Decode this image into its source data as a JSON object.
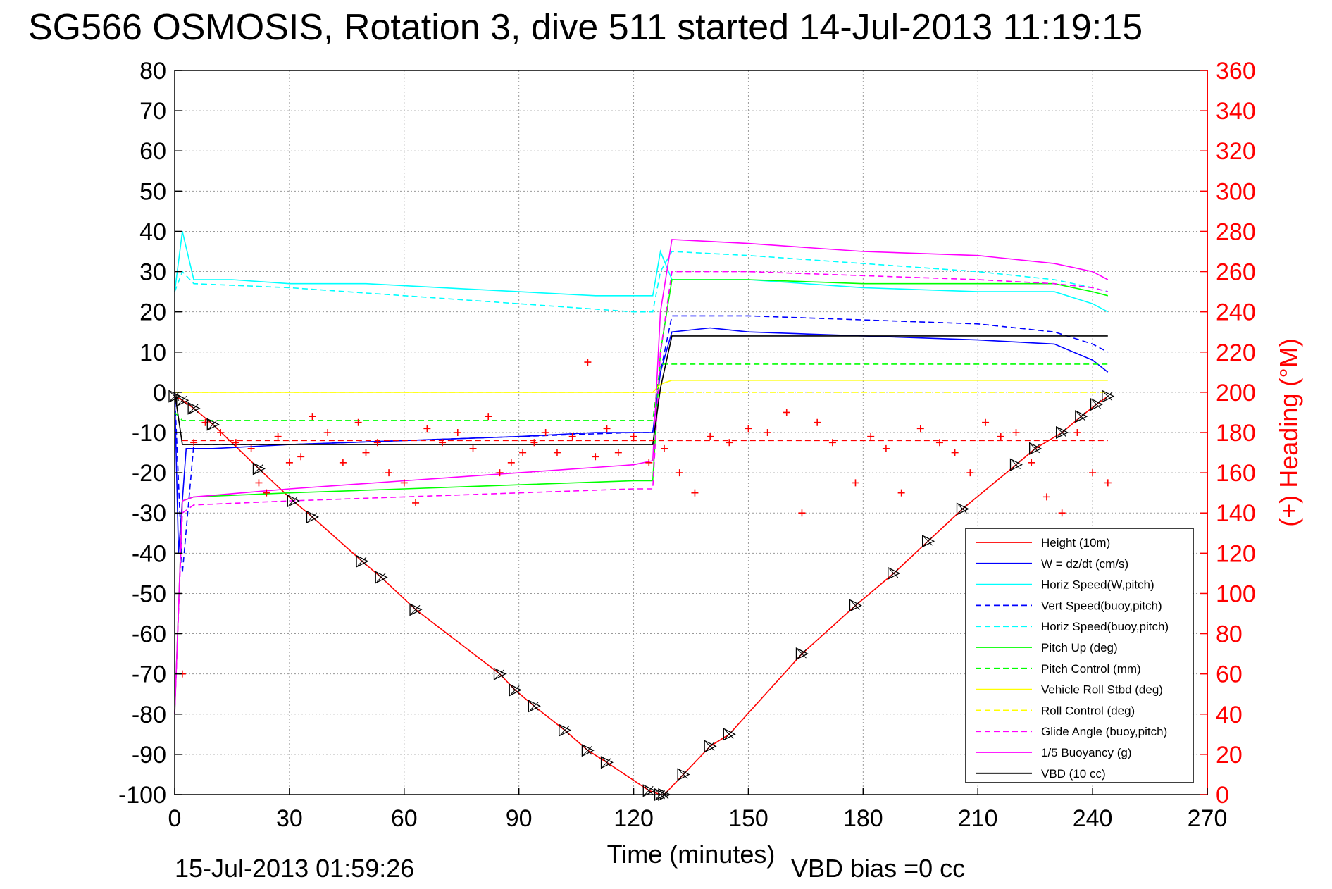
{
  "chart_data": {
    "type": "line",
    "title": "SG566 OSMOSIS, Rotation 3, dive 511 started 14-Jul-2013 11:19:15",
    "xlabel": "Time (minutes)",
    "ylabel": "",
    "ylabel_right": "(+) Heading (°M)",
    "xlim": [
      0,
      270
    ],
    "ylim": [
      -100,
      80
    ],
    "ylim_right": [
      0,
      360
    ],
    "x_ticks": [
      "0",
      "30",
      "60",
      "90",
      "120",
      "150",
      "180",
      "210",
      "240",
      "270"
    ],
    "y_ticks_left": [
      "80",
      "70",
      "60",
      "50",
      "40",
      "30",
      "20",
      "10",
      "0",
      "-10",
      "-20",
      "-30",
      "-40",
      "-50",
      "-60",
      "-70",
      "-80",
      "-90",
      "-100"
    ],
    "y_ticks_right": [
      "360",
      "340",
      "320",
      "300",
      "280",
      "260",
      "240",
      "220",
      "200",
      "180",
      "160",
      "140",
      "120",
      "100",
      "80",
      "60",
      "40",
      "20",
      "0"
    ],
    "grid": true,
    "legend_position": "bottom-right",
    "footer_date": "15-Jul-2013 01:59:26",
    "footer_bias": "VBD bias =0 cc",
    "series": [
      {
        "name": "Height (10m)",
        "color": "#ff0000",
        "style": "solid",
        "x": [
          0,
          2,
          5,
          10,
          22,
          31,
          36,
          49,
          54,
          63,
          85,
          89,
          94,
          102,
          108,
          113,
          124,
          127,
          128,
          133,
          140,
          145,
          164,
          178,
          188,
          197,
          206,
          220,
          225,
          232,
          237,
          241,
          244
        ],
        "y": [
          -1,
          -2,
          -4,
          -8,
          -19,
          -27,
          -31,
          -42,
          -46,
          -54,
          -70,
          -74,
          -78,
          -84,
          -89,
          -92,
          -99,
          -100,
          -100,
          -95,
          -88,
          -85,
          -65,
          -53,
          -45,
          -37,
          -29,
          -18,
          -14,
          -10,
          -6,
          -3,
          -1
        ]
      },
      {
        "name": "W = dz/dt (cm/s)",
        "color": "#0000ff",
        "style": "solid",
        "x": [
          0,
          1,
          3,
          10,
          30,
          60,
          90,
          110,
          125,
          127,
          130,
          140,
          150,
          180,
          210,
          230,
          240,
          244
        ],
        "y": [
          0,
          -40,
          -14,
          -14,
          -13,
          -12,
          -11,
          -10,
          -10,
          5,
          15,
          16,
          15,
          14,
          13,
          12,
          8,
          5
        ]
      },
      {
        "name": "Horiz Speed(W,pitch)",
        "color": "#00ffff",
        "style": "solid",
        "x": [
          0,
          2,
          5,
          15,
          30,
          50,
          70,
          90,
          110,
          125,
          127,
          130,
          150,
          180,
          210,
          230,
          240,
          244
        ],
        "y": [
          25,
          40,
          28,
          28,
          27,
          27,
          26,
          25,
          24,
          24,
          35,
          28,
          28,
          26,
          25,
          25,
          22,
          20
        ]
      },
      {
        "name": "Vert Speed(buoy,pitch)",
        "color": "#0000ff",
        "style": "dashed",
        "x": [
          0,
          2,
          5,
          30,
          60,
          90,
          120,
          125,
          127,
          130,
          150,
          180,
          210,
          230,
          240,
          244
        ],
        "y": [
          0,
          -45,
          -13,
          -13,
          -12,
          -11,
          -10,
          -10,
          5,
          19,
          19,
          18,
          17,
          15,
          12,
          10
        ]
      },
      {
        "name": "Horiz Speed(buoy,pitch)",
        "color": "#00ffff",
        "style": "dashed",
        "x": [
          0,
          2,
          5,
          30,
          60,
          90,
          120,
          125,
          127,
          130,
          150,
          180,
          210,
          230,
          240,
          244
        ],
        "y": [
          25,
          30,
          27,
          26,
          24,
          22,
          20,
          20,
          30,
          35,
          34,
          32,
          30,
          28,
          26,
          25
        ]
      },
      {
        "name": "Pitch Up (deg)",
        "color": "#00ff00",
        "style": "solid",
        "x": [
          0,
          2,
          5,
          30,
          60,
          90,
          120,
          125,
          127,
          130,
          150,
          180,
          210,
          230,
          240,
          244
        ],
        "y": [
          -80,
          -27,
          -26,
          -25,
          -24,
          -23,
          -22,
          -22,
          10,
          28,
          28,
          27,
          27,
          27,
          25,
          24
        ]
      },
      {
        "name": "Pitch Control (mm)",
        "color": "#00ff00",
        "style": "dashed",
        "x": [
          0,
          2,
          5,
          30,
          60,
          90,
          120,
          125,
          127,
          130,
          150,
          180,
          210,
          230,
          240,
          244
        ],
        "y": [
          -5,
          -7,
          -7,
          -7,
          -7,
          -7,
          -7,
          -7,
          7,
          7,
          7,
          7,
          7,
          7,
          7,
          7
        ]
      },
      {
        "name": "Vehicle Roll Stbd (deg)",
        "color": "#ffff00",
        "style": "solid",
        "x": [
          0,
          5,
          30,
          60,
          90,
          120,
          125,
          127,
          130,
          150,
          180,
          210,
          230,
          240,
          244
        ],
        "y": [
          0,
          0,
          0,
          0,
          0,
          0,
          0,
          2,
          3,
          3,
          3,
          3,
          3,
          3,
          3
        ]
      },
      {
        "name": "Roll Control (deg)",
        "color": "#ffff00",
        "style": "dashed",
        "x": [
          0,
          5,
          30,
          60,
          90,
          120,
          125,
          127,
          130,
          150,
          180,
          210,
          230,
          240,
          244
        ],
        "y": [
          0,
          0,
          0,
          0,
          0,
          0,
          0,
          0,
          0,
          0,
          0,
          0,
          0,
          0,
          0
        ]
      },
      {
        "name": "Glide Angle (buoy,pitch)",
        "color": "#ff00ff",
        "style": "dashed",
        "x": [
          0,
          2,
          5,
          30,
          60,
          90,
          120,
          125,
          127,
          130,
          150,
          180,
          210,
          230,
          240,
          244
        ],
        "y": [
          -80,
          -30,
          -28,
          -27,
          -26,
          -25,
          -24,
          -24,
          10,
          30,
          30,
          29,
          28,
          27,
          26,
          25
        ]
      },
      {
        "name": "1/5 Buoyancy (g)",
        "color": "#ff00ff",
        "style": "solid",
        "x": [
          0,
          2,
          5,
          30,
          60,
          90,
          120,
          125,
          127,
          130,
          150,
          180,
          210,
          230,
          240,
          244
        ],
        "y": [
          -80,
          -27,
          -26,
          -24,
          -22,
          -20,
          -18,
          -17,
          20,
          38,
          37,
          35,
          34,
          32,
          30,
          28
        ]
      },
      {
        "name": "VBD (10 cc)",
        "color": "#000000",
        "style": "solid",
        "x": [
          0,
          2,
          5,
          125,
          127,
          130,
          244
        ],
        "y": [
          0,
          -13,
          -13,
          -13,
          1,
          14,
          14
        ]
      }
    ],
    "heading": {
      "color": "#ff0000",
      "marker": "+",
      "mean": 176,
      "x": [
        2,
        5,
        8,
        12,
        16,
        20,
        22,
        24,
        27,
        30,
        33,
        36,
        40,
        44,
        48,
        50,
        53,
        56,
        60,
        63,
        66,
        70,
        74,
        78,
        82,
        85,
        88,
        91,
        94,
        97,
        100,
        104,
        108,
        110,
        113,
        116,
        120,
        124,
        128,
        132,
        136,
        140,
        145,
        150,
        155,
        160,
        164,
        168,
        172,
        178,
        182,
        186,
        190,
        195,
        200,
        204,
        208,
        212,
        216,
        220,
        224,
        228,
        232,
        236,
        240,
        244
      ],
      "y": [
        60,
        175,
        185,
        180,
        175,
        172,
        155,
        150,
        178,
        165,
        168,
        188,
        180,
        165,
        185,
        170,
        175,
        160,
        155,
        145,
        182,
        175,
        180,
        172,
        188,
        160,
        165,
        170,
        175,
        180,
        170,
        178,
        215,
        168,
        182,
        170,
        178,
        165,
        172,
        160,
        150,
        178,
        175,
        182,
        180,
        190,
        140,
        185,
        175,
        155,
        178,
        172,
        150,
        182,
        175,
        170,
        160,
        185,
        178,
        180,
        165,
        148,
        140,
        180,
        160,
        155
      ]
    }
  }
}
